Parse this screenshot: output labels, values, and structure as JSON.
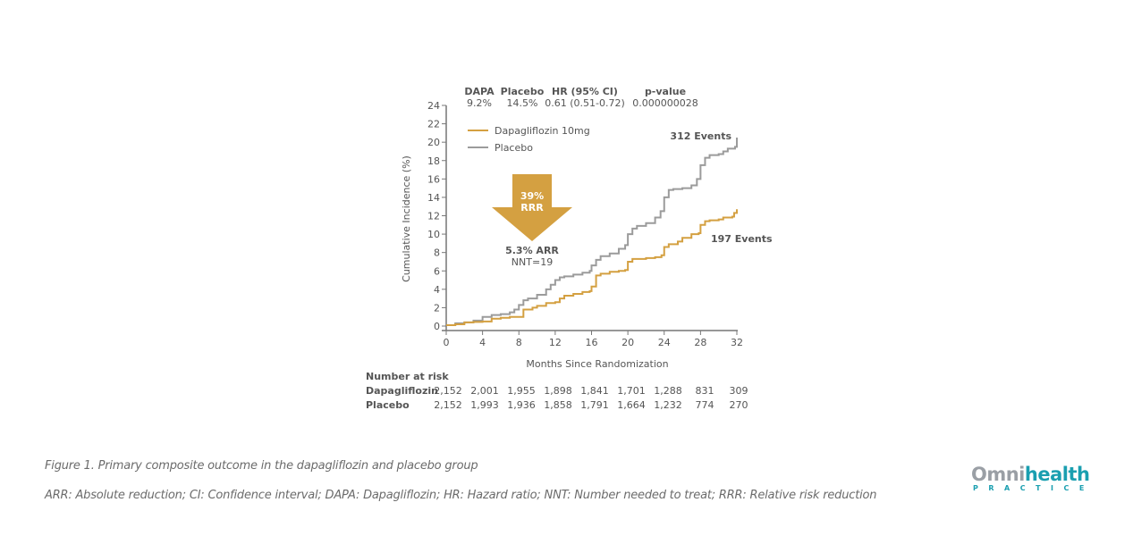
{
  "chart_data": {
    "type": "line",
    "title": "",
    "xlabel": "Months Since Randomization",
    "ylabel": "Cumulative Incidence (%)",
    "xlim": [
      0,
      32
    ],
    "ylim": [
      0,
      24
    ],
    "x_ticks": [
      0,
      4,
      8,
      12,
      16,
      20,
      24,
      28,
      32
    ],
    "y_ticks": [
      0,
      2,
      4,
      6,
      8,
      10,
      12,
      14,
      16,
      18,
      20,
      22,
      24
    ],
    "grid": false,
    "legend_position": "top-left",
    "series": [
      {
        "name": "Dapagliflozin 10mg",
        "color": "#d4a041",
        "step": true,
        "points": [
          [
            0,
            0.1
          ],
          [
            1,
            0.2
          ],
          [
            2,
            0.4
          ],
          [
            3,
            0.45
          ],
          [
            4,
            0.5
          ],
          [
            5,
            0.8
          ],
          [
            6,
            0.9
          ],
          [
            7,
            1.0
          ],
          [
            8,
            1.0
          ],
          [
            8.5,
            1.8
          ],
          [
            9.5,
            2.0
          ],
          [
            10,
            2.2
          ],
          [
            11,
            2.5
          ],
          [
            12,
            2.6
          ],
          [
            12.5,
            3.0
          ],
          [
            13,
            3.3
          ],
          [
            14,
            3.5
          ],
          [
            15,
            3.7
          ],
          [
            15.8,
            3.8
          ],
          [
            16,
            4.3
          ],
          [
            16.5,
            5.5
          ],
          [
            17,
            5.7
          ],
          [
            18,
            5.9
          ],
          [
            19,
            6.0
          ],
          [
            19.7,
            6.1
          ],
          [
            20,
            7.0
          ],
          [
            20.5,
            7.3
          ],
          [
            22,
            7.4
          ],
          [
            23,
            7.5
          ],
          [
            23.7,
            7.7
          ],
          [
            24,
            8.6
          ],
          [
            24.5,
            8.9
          ],
          [
            25.5,
            9.2
          ],
          [
            26,
            9.6
          ],
          [
            27,
            10.0
          ],
          [
            27.8,
            10.1
          ],
          [
            28,
            11.0
          ],
          [
            28.5,
            11.4
          ],
          [
            29,
            11.5
          ],
          [
            30,
            11.6
          ],
          [
            30.5,
            11.8
          ],
          [
            31.5,
            11.9
          ],
          [
            31.7,
            12.3
          ],
          [
            32,
            12.7
          ]
        ],
        "end_label": "197 Events"
      },
      {
        "name": "Placebo",
        "color": "#9b9b9b",
        "step": true,
        "points": [
          [
            0,
            0.1
          ],
          [
            1,
            0.3
          ],
          [
            2,
            0.4
          ],
          [
            3,
            0.6
          ],
          [
            4,
            1.0
          ],
          [
            5,
            1.2
          ],
          [
            6,
            1.3
          ],
          [
            7,
            1.5
          ],
          [
            7.5,
            1.8
          ],
          [
            8,
            2.3
          ],
          [
            8.5,
            2.8
          ],
          [
            9,
            3.0
          ],
          [
            10,
            3.4
          ],
          [
            11,
            4.0
          ],
          [
            11.5,
            4.5
          ],
          [
            12,
            5.0
          ],
          [
            12.5,
            5.3
          ],
          [
            13,
            5.4
          ],
          [
            14,
            5.6
          ],
          [
            15,
            5.8
          ],
          [
            15.8,
            6.0
          ],
          [
            16,
            6.6
          ],
          [
            16.5,
            7.2
          ],
          [
            17,
            7.6
          ],
          [
            18,
            7.9
          ],
          [
            19,
            8.4
          ],
          [
            19.7,
            8.8
          ],
          [
            20,
            10.0
          ],
          [
            20.5,
            10.6
          ],
          [
            21,
            10.9
          ],
          [
            22,
            11.2
          ],
          [
            23,
            11.8
          ],
          [
            23.6,
            12.5
          ],
          [
            24,
            14.0
          ],
          [
            24.5,
            14.8
          ],
          [
            25,
            14.9
          ],
          [
            26,
            15.0
          ],
          [
            27,
            15.3
          ],
          [
            27.6,
            16.0
          ],
          [
            28,
            17.5
          ],
          [
            28.5,
            18.3
          ],
          [
            29,
            18.6
          ],
          [
            30,
            18.7
          ],
          [
            30.5,
            19.0
          ],
          [
            31,
            19.3
          ],
          [
            31.8,
            19.5
          ],
          [
            32,
            20.5
          ]
        ],
        "end_label": "312 Events"
      }
    ],
    "stats_table": {
      "headers": [
        "DAPA",
        "Placebo",
        "HR (95% CI)",
        "p-value"
      ],
      "values": [
        "9.2%",
        "14.5%",
        "0.61 (0.51-0.72)",
        "0.000000028"
      ]
    },
    "annotations": {
      "arrow_line1": "39%",
      "arrow_line2": "RRR",
      "arr": "5.3% ARR",
      "nnt": "NNT=19",
      "arrow_color": "#d4a041"
    },
    "number_at_risk": {
      "title": "Number at risk",
      "rows": [
        {
          "label": "Dapagliflozin",
          "values": [
            "2,152",
            "2,001",
            "1,955",
            "1,898",
            "1,841",
            "1,701",
            "1,288",
            "831",
            "309"
          ]
        },
        {
          "label": "Placebo",
          "values": [
            "2,152",
            "1,993",
            "1,936",
            "1,858",
            "1,791",
            "1,664",
            "1,232",
            "774",
            "270"
          ]
        }
      ]
    }
  },
  "caption": {
    "figure": "Figure 1. Primary composite outcome in the dapagliflozin and placebo group",
    "abbreviations": "ARR: Absolute reduction; CI: Confidence interval; DAPA: Dapagliflozin; HR: Hazard ratio; NNT: Number needed to treat; RRR: Relative risk reduction"
  },
  "logo": {
    "omni": "Omni",
    "health": "health",
    "sub": "PRACTICE"
  }
}
